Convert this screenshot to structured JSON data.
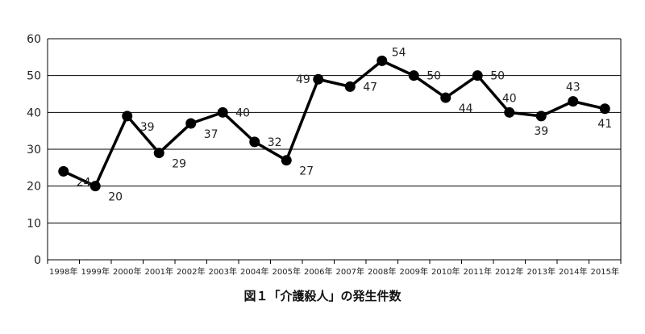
{
  "caption": "図１「介護殺人」の発生件数",
  "chart_data": {
    "type": "line",
    "title": "",
    "xlabel": "",
    "ylabel": "",
    "categories": [
      "1998年",
      "1999年",
      "2000年",
      "2001年",
      "2002年",
      "2003年",
      "2004年",
      "2005年",
      "2006年",
      "2007年",
      "2008年",
      "2009年",
      "2010年",
      "2011年",
      "2012年",
      "2013年",
      "2014年",
      "2015年"
    ],
    "series": [
      {
        "values": [
          24,
          20,
          39,
          29,
          37,
          40,
          32,
          27,
          49,
          47,
          54,
          50,
          44,
          50,
          40,
          39,
          43,
          41
        ]
      }
    ],
    "ylim": [
      0,
      60
    ],
    "yticks": [
      0,
      10,
      20,
      30,
      40,
      50,
      60
    ],
    "grid": true,
    "legend": "none"
  },
  "colors": {
    "line": "#000000",
    "grid": "#000000",
    "marker": "#000000",
    "text": "#222222"
  }
}
